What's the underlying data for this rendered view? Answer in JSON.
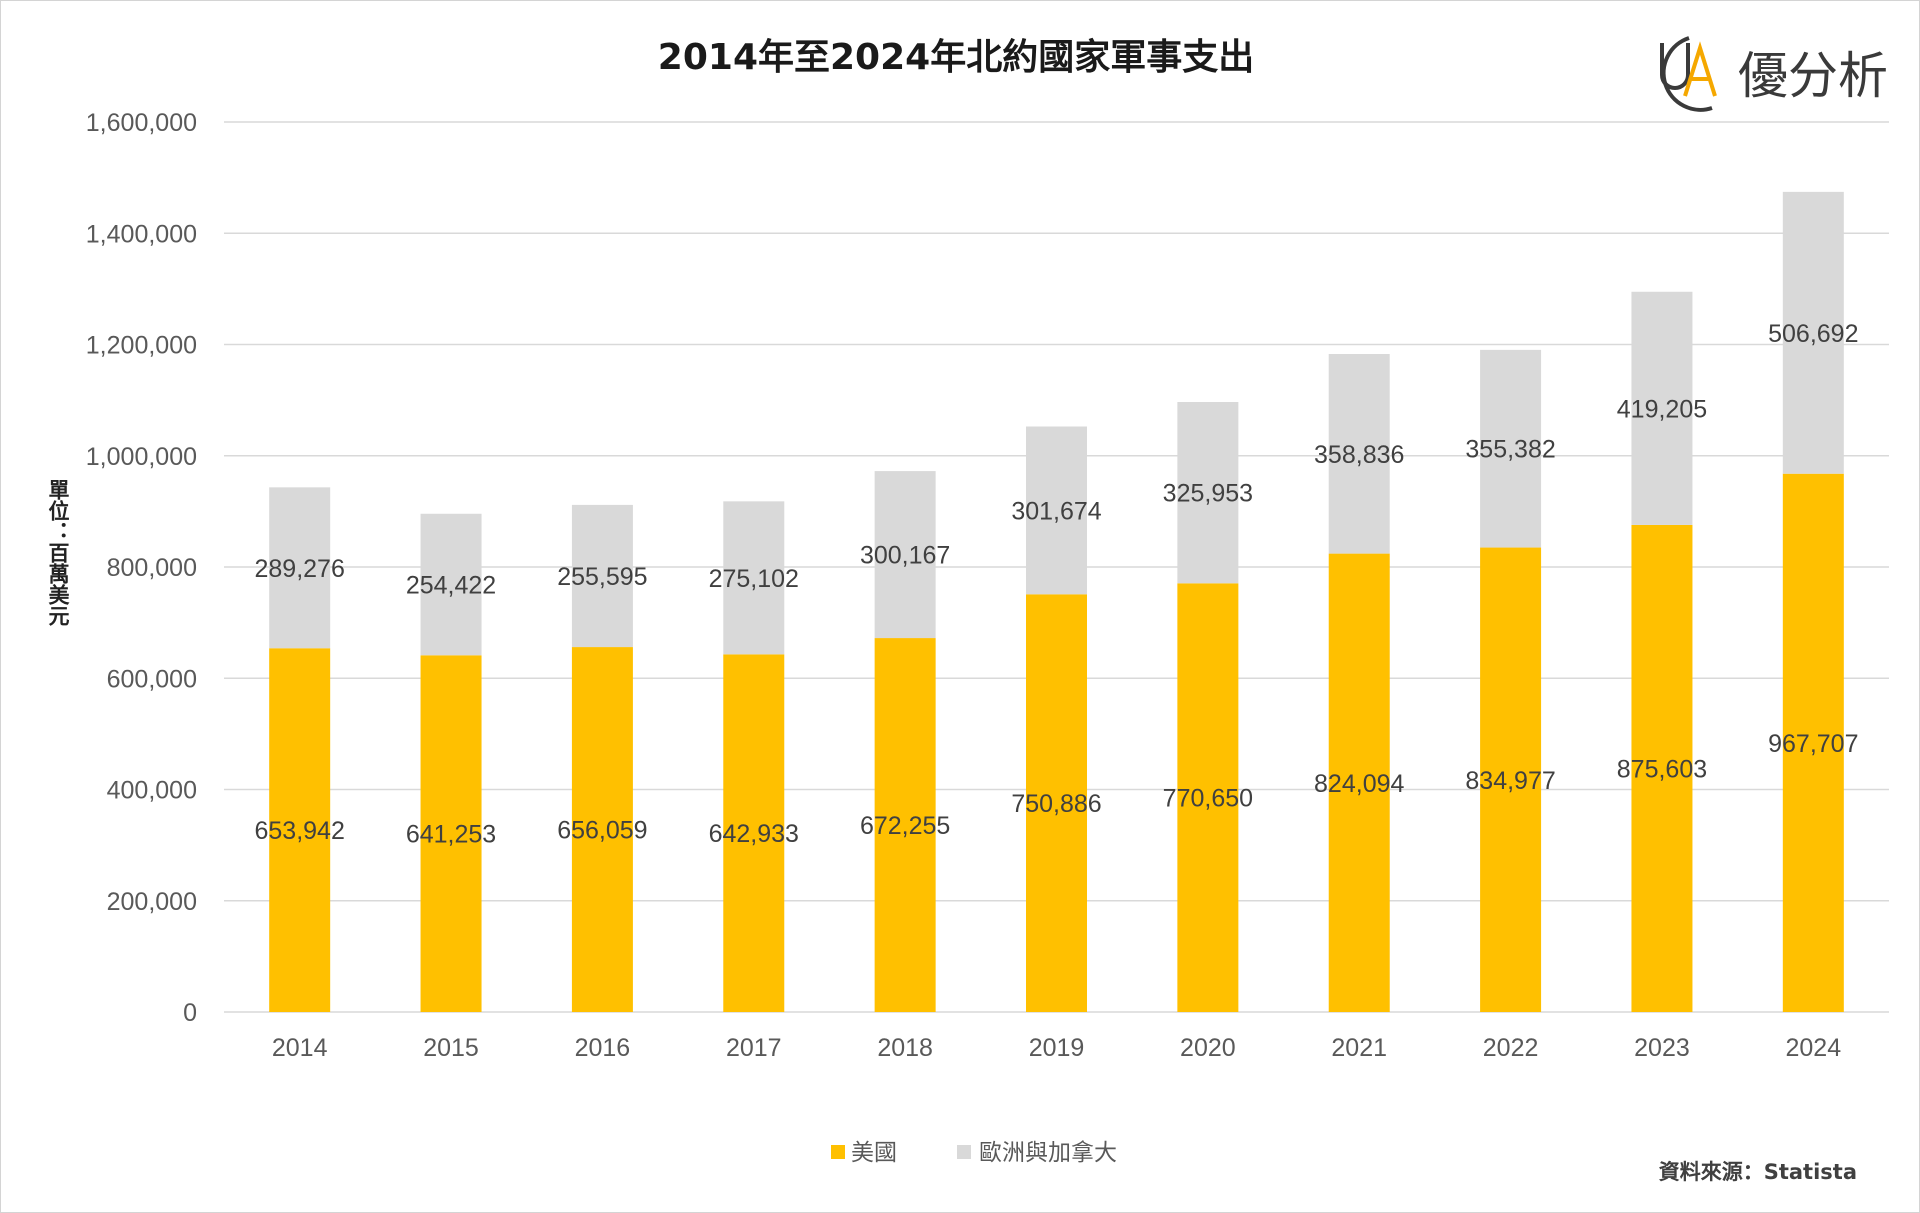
{
  "brand": {
    "name": "優分析",
    "mark": "UA",
    "color": "#f5a800"
  },
  "source": "資料來源：Statista",
  "colors": {
    "us": "#ffc000",
    "europe": "#d9d9d9",
    "grid": "#d9d9d9"
  },
  "chart_data": {
    "type": "bar",
    "stacked": true,
    "title": "2014年至2024年北約國家軍事支出",
    "xlabel": "",
    "ylabel": "單位：百萬美元",
    "ylim": [
      0,
      1600000
    ],
    "yticks": [
      "0",
      "200,000",
      "400,000",
      "600,000",
      "800,000",
      "1,000,000",
      "1,200,000",
      "1,400,000",
      "1,600,000"
    ],
    "grid": true,
    "legend_position": "bottom",
    "categories": [
      "2014",
      "2015",
      "2016",
      "2017",
      "2018",
      "2019",
      "2020",
      "2021",
      "2022",
      "2023",
      "2024"
    ],
    "series": [
      {
        "name": "美國",
        "color": "#ffc000",
        "values": [
          653942,
          641253,
          656059,
          642933,
          672255,
          750886,
          770650,
          824094,
          834977,
          875603,
          967707
        ],
        "labels": [
          "653,942",
          "641,253",
          "656,059",
          "642,933",
          "672,255",
          "750,886",
          "770,650",
          "824,094",
          "834,977",
          "875,603",
          "967,707"
        ]
      },
      {
        "name": "歐洲與加拿大",
        "color": "#d9d9d9",
        "values": [
          289276,
          254422,
          255595,
          275102,
          300167,
          301674,
          325953,
          358836,
          355382,
          419205,
          506692
        ],
        "labels": [
          "289,276",
          "254,422",
          "255,595",
          "275,102",
          "300,167",
          "301,674",
          "325,953",
          "358,836",
          "355,382",
          "419,205",
          "506,692"
        ]
      }
    ]
  }
}
